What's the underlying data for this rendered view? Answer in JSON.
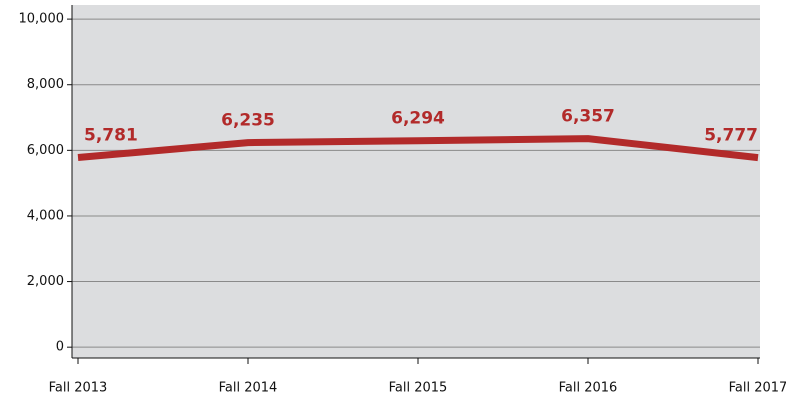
{
  "chart_data": {
    "type": "line",
    "categories": [
      "Fall 2013",
      "Fall 2014",
      "Fall 2015",
      "Fall 2016",
      "Fall 2017"
    ],
    "series": [
      {
        "color": "#b22a2a",
        "values": [
          5781,
          6235,
          6294,
          6357,
          5777
        ],
        "value_labels": [
          "5,781",
          "6,235",
          "6,294",
          "6,357",
          "5,777"
        ]
      }
    ],
    "ylim": [
      -330,
      10430
    ],
    "yticks": [
      0,
      {
        "value": 2000,
        "label": "2,000"
      },
      {
        "value": 4000,
        "label": "4,000"
      },
      {
        "value": 6000,
        "label": "6,000"
      },
      {
        "value": 8000,
        "label": "8,000"
      },
      {
        "value": 10000,
        "label": "10,000"
      }
    ],
    "grid": true
  }
}
